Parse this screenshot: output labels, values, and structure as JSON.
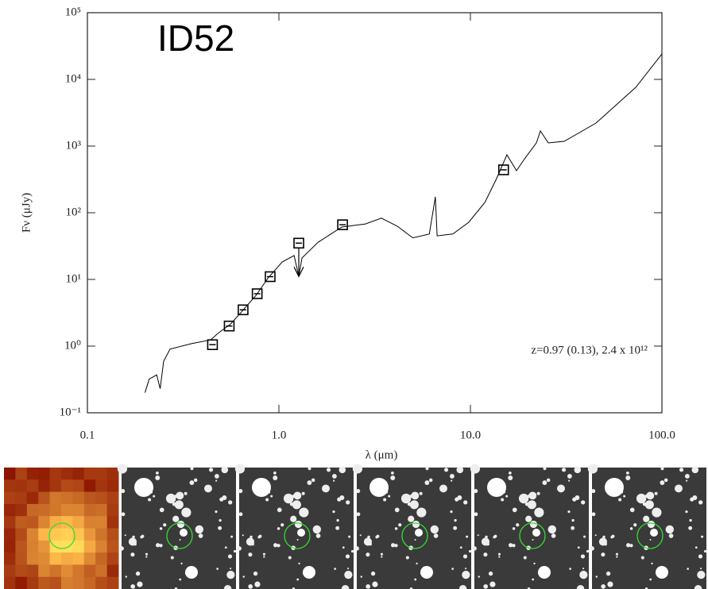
{
  "chart_data": {
    "type": "sed",
    "title": "ID52",
    "x_label": "λ (μm)",
    "y_label": "Fν (μJy)",
    "annotation": "z=0.97 (0.13),  2.4 x 10¹²",
    "xlog": true,
    "ylog": true,
    "grid": false,
    "xlim": [
      0.1,
      100
    ],
    "ylim": [
      0.1,
      100000
    ],
    "xticks": [
      0.1,
      {
        "value": 1,
        "label": "1.0"
      },
      {
        "value": 10,
        "label": "10.0"
      },
      {
        "value": 100,
        "label": "100.0"
      }
    ],
    "yticks": [
      {
        "value": 0.1,
        "label": "10⁻¹"
      },
      {
        "value": 1,
        "label": "10⁰"
      },
      {
        "value": 10,
        "label": "10¹"
      },
      {
        "value": 100,
        "label": "10²"
      },
      {
        "value": 1000,
        "label": "10³"
      },
      {
        "value": 10000,
        "label": "10⁴"
      },
      {
        "value": 100000,
        "label": "10⁵"
      }
    ],
    "model": {
      "color": "#000000",
      "x": [
        0.2,
        0.21,
        0.23,
        0.24,
        0.25,
        0.27,
        0.35,
        0.44,
        0.48,
        0.56,
        0.64,
        0.76,
        0.88,
        1.04,
        1.2,
        1.27,
        1.32,
        1.6,
        2.13,
        2.83,
        3.43,
        4.15,
        5.0,
        6.1,
        6.56,
        6.7,
        8.1,
        9.8,
        11.9,
        13.7,
        15.5,
        17.4,
        19.2,
        22.1,
        23.2,
        25.5,
        30.9,
        45.3,
        73,
        100
      ],
      "values": [
        0.2,
        0.32,
        0.37,
        0.23,
        0.59,
        0.9,
        1.09,
        1.24,
        1.55,
        2.15,
        3.3,
        5.8,
        10.6,
        18.3,
        22.8,
        11.2,
        21,
        36,
        61,
        68,
        83,
        63,
        42,
        48,
        173,
        45,
        48,
        72,
        143,
        325,
        740,
        428,
        646,
        1117,
        1683,
        1117,
        1178,
        2213,
        7600,
        24000
      ]
    },
    "photometry": {
      "color": "#000000",
      "x": [
        0.45,
        0.55,
        0.65,
        0.77,
        0.9,
        1.27,
        2.15,
        14.9
      ],
      "values": [
        1.05,
        2.0,
        3.5,
        6.1,
        11,
        35,
        66,
        440
      ],
      "upper_limit": [
        false,
        false,
        false,
        false,
        false,
        true,
        false,
        false
      ]
    }
  }
}
